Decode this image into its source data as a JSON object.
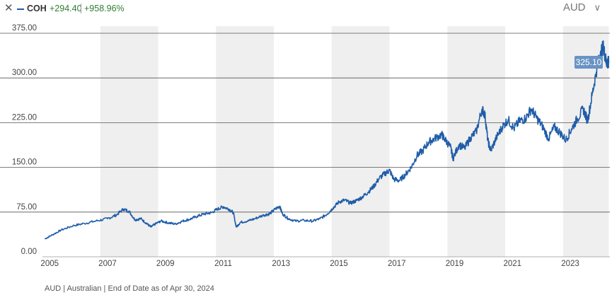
{
  "header": {
    "close_icon": "close-icon",
    "ticker": "COH",
    "change": "+294.40",
    "change_pct": "+958.96%",
    "positive_color": "#2e7d32",
    "series_color": "#1f5da8",
    "currency": "AUD",
    "currency_icon": "chevron-down-icon"
  },
  "footer": {
    "note": "AUD | Australian | End of Date as of Apr 30, 2024"
  },
  "chart_data": {
    "type": "line",
    "title": "",
    "xlabel": "",
    "ylabel": "",
    "ylim": [
      0,
      375
    ],
    "y_ticks": [
      "0.00",
      "75.00",
      "150.00",
      "225.00",
      "300.00",
      "375.00"
    ],
    "x_ticks": [
      "2005",
      "2007",
      "2009",
      "2011",
      "2013",
      "2015",
      "2017",
      "2019",
      "2021",
      "2023"
    ],
    "shaded_bands": [
      [
        2006.75,
        2008.75
      ],
      [
        2010.75,
        2012.75
      ],
      [
        2014.75,
        2016.75
      ],
      [
        2018.75,
        2020.75
      ],
      [
        2022.75,
        2024.33
      ]
    ],
    "last_value_label": "325.10",
    "grid": true,
    "series": [
      {
        "name": "COH",
        "color": "#1f5da8",
        "points": [
          [
            2004.83,
            30
          ],
          [
            2005.1,
            37
          ],
          [
            2005.4,
            45
          ],
          [
            2005.8,
            52
          ],
          [
            2006.2,
            56
          ],
          [
            2006.6,
            60
          ],
          [
            2007.0,
            64
          ],
          [
            2007.3,
            70
          ],
          [
            2007.55,
            80
          ],
          [
            2007.75,
            76
          ],
          [
            2007.95,
            62
          ],
          [
            2008.15,
            64
          ],
          [
            2008.35,
            56
          ],
          [
            2008.5,
            50
          ],
          [
            2008.65,
            55
          ],
          [
            2008.85,
            60
          ],
          [
            2009.1,
            57
          ],
          [
            2009.35,
            55
          ],
          [
            2009.6,
            60
          ],
          [
            2009.85,
            63
          ],
          [
            2010.1,
            68
          ],
          [
            2010.35,
            72
          ],
          [
            2010.6,
            74
          ],
          [
            2010.8,
            80
          ],
          [
            2011.0,
            84
          ],
          [
            2011.2,
            80
          ],
          [
            2011.35,
            74
          ],
          [
            2011.45,
            50
          ],
          [
            2011.6,
            58
          ],
          [
            2011.85,
            60
          ],
          [
            2012.1,
            64
          ],
          [
            2012.4,
            70
          ],
          [
            2012.6,
            72
          ],
          [
            2012.8,
            80
          ],
          [
            2012.95,
            85
          ],
          [
            2013.05,
            72
          ],
          [
            2013.25,
            64
          ],
          [
            2013.5,
            60
          ],
          [
            2013.8,
            61
          ],
          [
            2014.1,
            60
          ],
          [
            2014.35,
            64
          ],
          [
            2014.6,
            72
          ],
          [
            2014.8,
            82
          ],
          [
            2015.0,
            92
          ],
          [
            2015.2,
            95
          ],
          [
            2015.4,
            90
          ],
          [
            2015.6,
            94
          ],
          [
            2015.8,
            100
          ],
          [
            2016.0,
            108
          ],
          [
            2016.2,
            118
          ],
          [
            2016.4,
            132
          ],
          [
            2016.6,
            140
          ],
          [
            2016.75,
            145
          ],
          [
            2016.9,
            130
          ],
          [
            2017.1,
            128
          ],
          [
            2017.3,
            138
          ],
          [
            2017.5,
            150
          ],
          [
            2017.7,
            170
          ],
          [
            2017.9,
            178
          ],
          [
            2018.1,
            192
          ],
          [
            2018.3,
            198
          ],
          [
            2018.55,
            205
          ],
          [
            2018.65,
            198
          ],
          [
            2018.85,
            185
          ],
          [
            2018.95,
            165
          ],
          [
            2019.15,
            188
          ],
          [
            2019.35,
            182
          ],
          [
            2019.55,
            200
          ],
          [
            2019.75,
            210
          ],
          [
            2019.95,
            248
          ],
          [
            2020.05,
            238
          ],
          [
            2020.15,
            195
          ],
          [
            2020.25,
            178
          ],
          [
            2020.45,
            200
          ],
          [
            2020.65,
            218
          ],
          [
            2020.85,
            230
          ],
          [
            2021.05,
            215
          ],
          [
            2021.25,
            228
          ],
          [
            2021.45,
            232
          ],
          [
            2021.65,
            248
          ],
          [
            2021.85,
            232
          ],
          [
            2022.05,
            218
          ],
          [
            2022.25,
            198
          ],
          [
            2022.45,
            218
          ],
          [
            2022.65,
            208
          ],
          [
            2022.85,
            196
          ],
          [
            2023.05,
            215
          ],
          [
            2023.25,
            232
          ],
          [
            2023.45,
            248
          ],
          [
            2023.6,
            228
          ],
          [
            2023.75,
            270
          ],
          [
            2023.9,
            310
          ],
          [
            2024.05,
            345
          ],
          [
            2024.15,
            352
          ],
          [
            2024.22,
            332
          ],
          [
            2024.28,
            325
          ],
          [
            2024.33,
            325.1
          ]
        ]
      }
    ]
  }
}
